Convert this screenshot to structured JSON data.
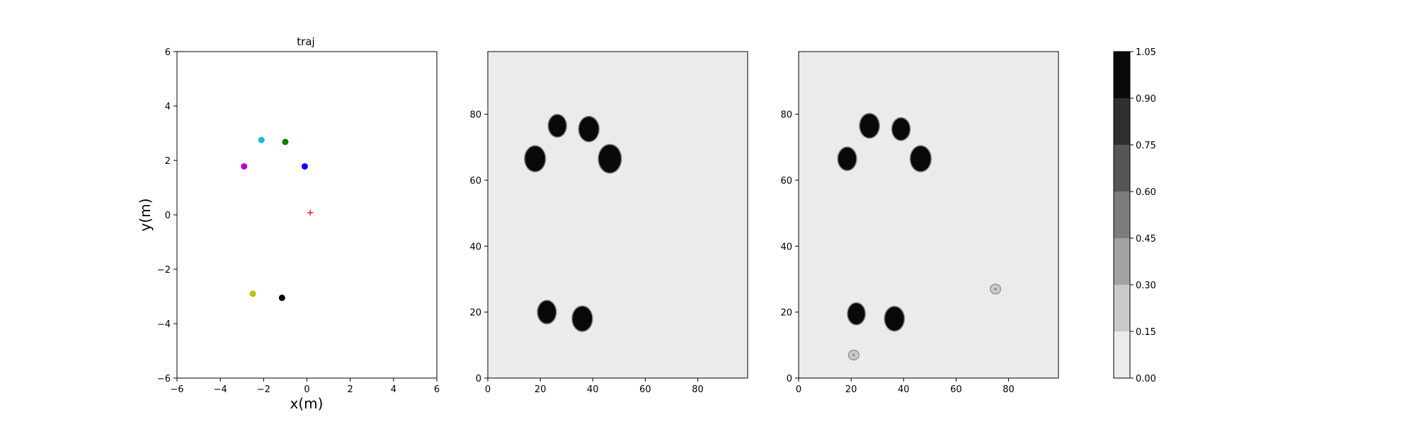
{
  "colors": {
    "cbar_levels": [
      "#ebebeb",
      "#c9c9c9",
      "#a2a2a2",
      "#7c7c7c",
      "#565656",
      "#303030",
      "#090909"
    ],
    "map_background": "#ebebeb",
    "map_blob": "#090909",
    "map_faint": "#c9c9c9",
    "target_marker": "#ff0000"
  },
  "chart_data": [
    {
      "type": "scatter",
      "title": "traj",
      "xlabel": "x(m)",
      "ylabel": "y(m)",
      "xlim": [
        -6,
        6
      ],
      "ylim": [
        -6,
        6
      ],
      "xticks": [
        "−6",
        "−4",
        "−2",
        "0",
        "2",
        "4",
        "6"
      ],
      "yticks": [
        "−6",
        "−4",
        "−2",
        "0",
        "2",
        "4",
        "6"
      ],
      "grid": false,
      "points": [
        {
          "x": -2.1,
          "y": 2.75,
          "color": "#17becf",
          "marker": "circle"
        },
        {
          "x": -1.0,
          "y": 2.68,
          "color": "#008000",
          "marker": "circle"
        },
        {
          "x": -2.9,
          "y": 1.78,
          "color": "#bf00bf",
          "marker": "circle"
        },
        {
          "x": -0.1,
          "y": 1.78,
          "color": "#0000ff",
          "marker": "circle"
        },
        {
          "x": 0.15,
          "y": 0.08,
          "color": "#ff0000",
          "marker": "plus"
        },
        {
          "x": -2.5,
          "y": -2.9,
          "color": "#bfbf00",
          "marker": "circle"
        },
        {
          "x": -1.15,
          "y": -3.05,
          "color": "#000000",
          "marker": "circle"
        }
      ]
    },
    {
      "type": "heatmap",
      "title": "",
      "xlim": [
        0,
        99
      ],
      "ylim": [
        0,
        99
      ],
      "xticks": [
        "0",
        "20",
        "40",
        "60",
        "80"
      ],
      "yticks": [
        "0",
        "20",
        "40",
        "60",
        "80"
      ],
      "background_value": 0.0,
      "blobs": [
        {
          "x": 26.5,
          "y": 76.5,
          "r": 3.3,
          "value": 1.0
        },
        {
          "x": 38.5,
          "y": 75.5,
          "r": 3.7,
          "value": 1.0
        },
        {
          "x": 18.0,
          "y": 66.5,
          "r": 3.8,
          "value": 1.0
        },
        {
          "x": 46.5,
          "y": 66.5,
          "r": 4.2,
          "value": 1.0
        },
        {
          "x": 22.5,
          "y": 20.0,
          "r": 3.4,
          "value": 1.0
        },
        {
          "x": 36.0,
          "y": 18.0,
          "r": 3.7,
          "value": 1.0
        }
      ]
    },
    {
      "type": "heatmap",
      "title": "",
      "xlim": [
        0,
        99
      ],
      "ylim": [
        0,
        99
      ],
      "xticks": [
        "0",
        "20",
        "40",
        "60",
        "80"
      ],
      "yticks": [
        "0",
        "20",
        "40",
        "60",
        "80"
      ],
      "background_value": 0.0,
      "blobs": [
        {
          "x": 27.0,
          "y": 76.5,
          "r": 3.6,
          "value": 1.0
        },
        {
          "x": 39.0,
          "y": 75.5,
          "r": 3.3,
          "value": 1.0
        },
        {
          "x": 18.5,
          "y": 66.5,
          "r": 3.4,
          "value": 1.0
        },
        {
          "x": 46.5,
          "y": 66.5,
          "r": 3.8,
          "value": 1.0
        },
        {
          "x": 22.0,
          "y": 19.5,
          "r": 3.2,
          "value": 1.0
        },
        {
          "x": 36.5,
          "y": 18.0,
          "r": 3.6,
          "value": 1.0
        },
        {
          "x": 75.0,
          "y": 27.0,
          "r": 2.0,
          "value": 0.25
        },
        {
          "x": 21.0,
          "y": 7.0,
          "r": 2.0,
          "value": 0.25
        }
      ]
    },
    {
      "type": "colorbar",
      "levels": [
        0.0,
        0.15,
        0.3,
        0.45,
        0.6,
        0.75,
        0.9,
        1.05
      ],
      "ticklabels": [
        "0.00",
        "0.15",
        "0.30",
        "0.45",
        "0.60",
        "0.75",
        "0.90",
        "1.05"
      ]
    }
  ]
}
